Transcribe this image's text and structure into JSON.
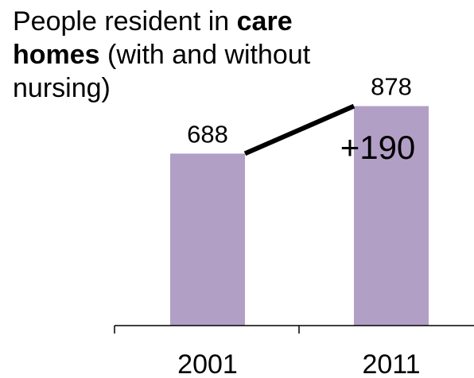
{
  "chart_data": {
    "type": "bar",
    "title_parts": [
      {
        "text": "People resident in ",
        "bold": false
      },
      {
        "text": "care homes",
        "bold": true
      },
      {
        "text": " (with and without nursing)",
        "bold": false
      }
    ],
    "categories": [
      "2001",
      "2011"
    ],
    "values": [
      688,
      878
    ],
    "data_labels": [
      "688",
      "878"
    ],
    "change_label": "+190",
    "bar_color": "#b29fc6",
    "connector_color": "#000000",
    "xlabel": "",
    "ylabel": "",
    "ylim": [
      0,
      1000
    ],
    "grid": false,
    "legend": "none"
  }
}
